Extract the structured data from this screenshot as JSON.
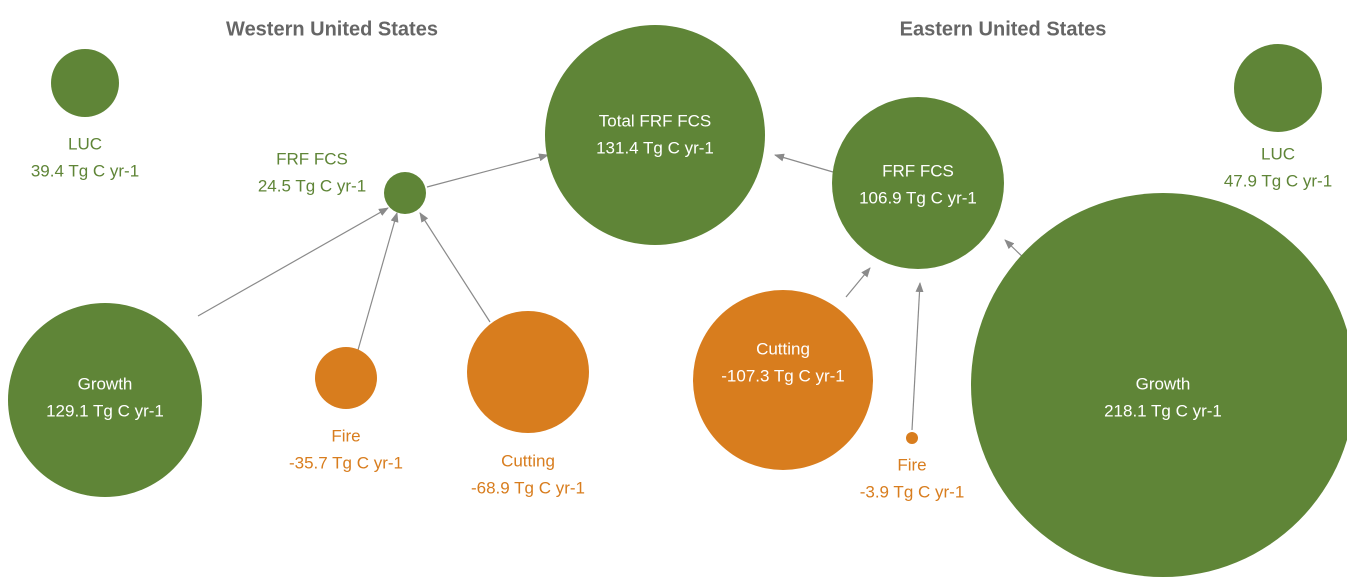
{
  "regions": [
    {
      "title": "Western United States"
    },
    {
      "title": "Eastern United States"
    }
  ],
  "nodes": [
    {
      "label": "LUC",
      "value": "39.4 Tg C yr-1"
    },
    {
      "label": "FRF FCS",
      "value": "24.5 Tg C yr-1"
    },
    {
      "label": "Total FRF FCS",
      "value": "131.4 Tg C yr-1"
    },
    {
      "label": "Growth",
      "value": "129.1 Tg C yr-1"
    },
    {
      "label": "Fire",
      "value": "-35.7 Tg C yr-1"
    },
    {
      "label": "Cutting",
      "value": "-68.9 Tg C yr-1"
    },
    {
      "label": "FRF FCS",
      "value": "106.9 Tg C yr-1"
    },
    {
      "label": "LUC",
      "value": "47.9 Tg C yr-1"
    },
    {
      "label": "Cutting",
      "value": "-107.3 Tg C yr-1"
    },
    {
      "label": "Fire",
      "value": "-3.9 Tg C yr-1"
    },
    {
      "label": "Growth",
      "value": "218.1 Tg C yr-1"
    }
  ]
}
